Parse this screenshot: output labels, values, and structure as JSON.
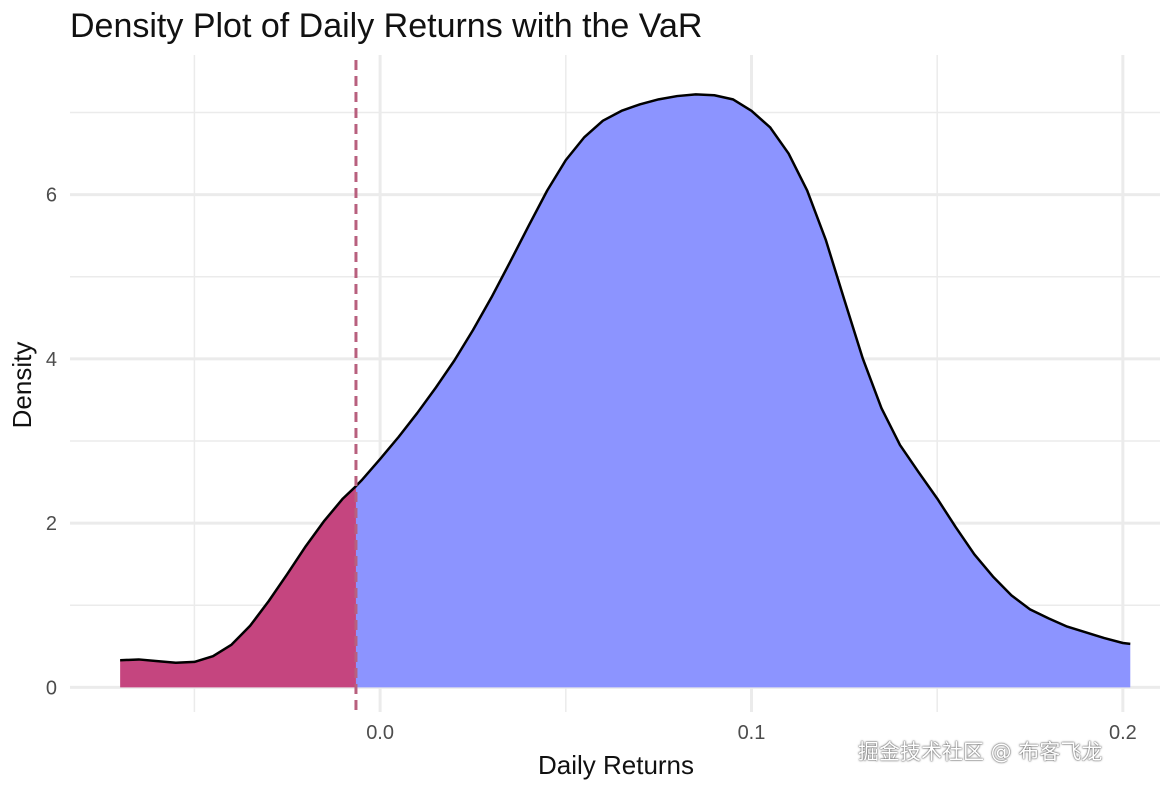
{
  "watermark": "掘金技术社区 @ 布客飞龙",
  "chart_data": {
    "type": "area",
    "title": "Density Plot of Daily Returns with the VaR",
    "xlabel": "Daily Returns",
    "ylabel": "Density",
    "xlim": [
      -0.0835,
      0.21
    ],
    "ylim": [
      -0.3,
      7.7
    ],
    "x_ticks": [
      0.0,
      0.1,
      0.2
    ],
    "x_tick_labels": [
      "0.0",
      "0.1",
      "0.2"
    ],
    "y_ticks": [
      0,
      2,
      4,
      6
    ],
    "y_tick_labels": [
      "0",
      "2",
      "4",
      "6"
    ],
    "x_minor_ticks": [
      -0.05,
      0.05,
      0.15
    ],
    "y_minor_ticks": [
      1,
      3,
      5,
      7
    ],
    "grid": true,
    "var_threshold": -0.0065,
    "colors": {
      "tail_fill": "#c5457f",
      "body_fill": "#8c94ff",
      "curve": "#000000",
      "var_line": "#b8607e",
      "grid": "#ebebeb",
      "background": "#ffffff"
    },
    "series": [
      {
        "x": [
          -0.07,
          -0.065,
          -0.06,
          -0.055,
          -0.05,
          -0.045,
          -0.04,
          -0.035,
          -0.03,
          -0.025,
          -0.02,
          -0.015,
          -0.01,
          -0.0065,
          -0.005,
          0.0,
          0.005,
          0.01,
          0.015,
          0.02,
          0.025,
          0.03,
          0.035,
          0.04,
          0.045,
          0.05,
          0.055,
          0.06,
          0.065,
          0.07,
          0.075,
          0.08,
          0.085,
          0.09,
          0.095,
          0.1,
          0.105,
          0.11,
          0.115,
          0.12,
          0.125,
          0.13,
          0.135,
          0.14,
          0.145,
          0.15,
          0.155,
          0.16,
          0.165,
          0.17,
          0.175,
          0.18,
          0.185,
          0.19,
          0.195,
          0.2,
          0.202
        ],
        "y": [
          0.33,
          0.34,
          0.32,
          0.3,
          0.31,
          0.38,
          0.52,
          0.75,
          1.05,
          1.38,
          1.72,
          2.03,
          2.3,
          2.45,
          2.52,
          2.78,
          3.05,
          3.34,
          3.65,
          3.98,
          4.35,
          4.75,
          5.18,
          5.62,
          6.05,
          6.42,
          6.7,
          6.9,
          7.02,
          7.1,
          7.16,
          7.2,
          7.22,
          7.21,
          7.16,
          7.02,
          6.82,
          6.5,
          6.05,
          5.45,
          4.72,
          4.0,
          3.4,
          2.95,
          2.62,
          2.3,
          1.95,
          1.62,
          1.35,
          1.12,
          0.95,
          0.84,
          0.74,
          0.67,
          0.6,
          0.54,
          0.53
        ]
      }
    ]
  }
}
